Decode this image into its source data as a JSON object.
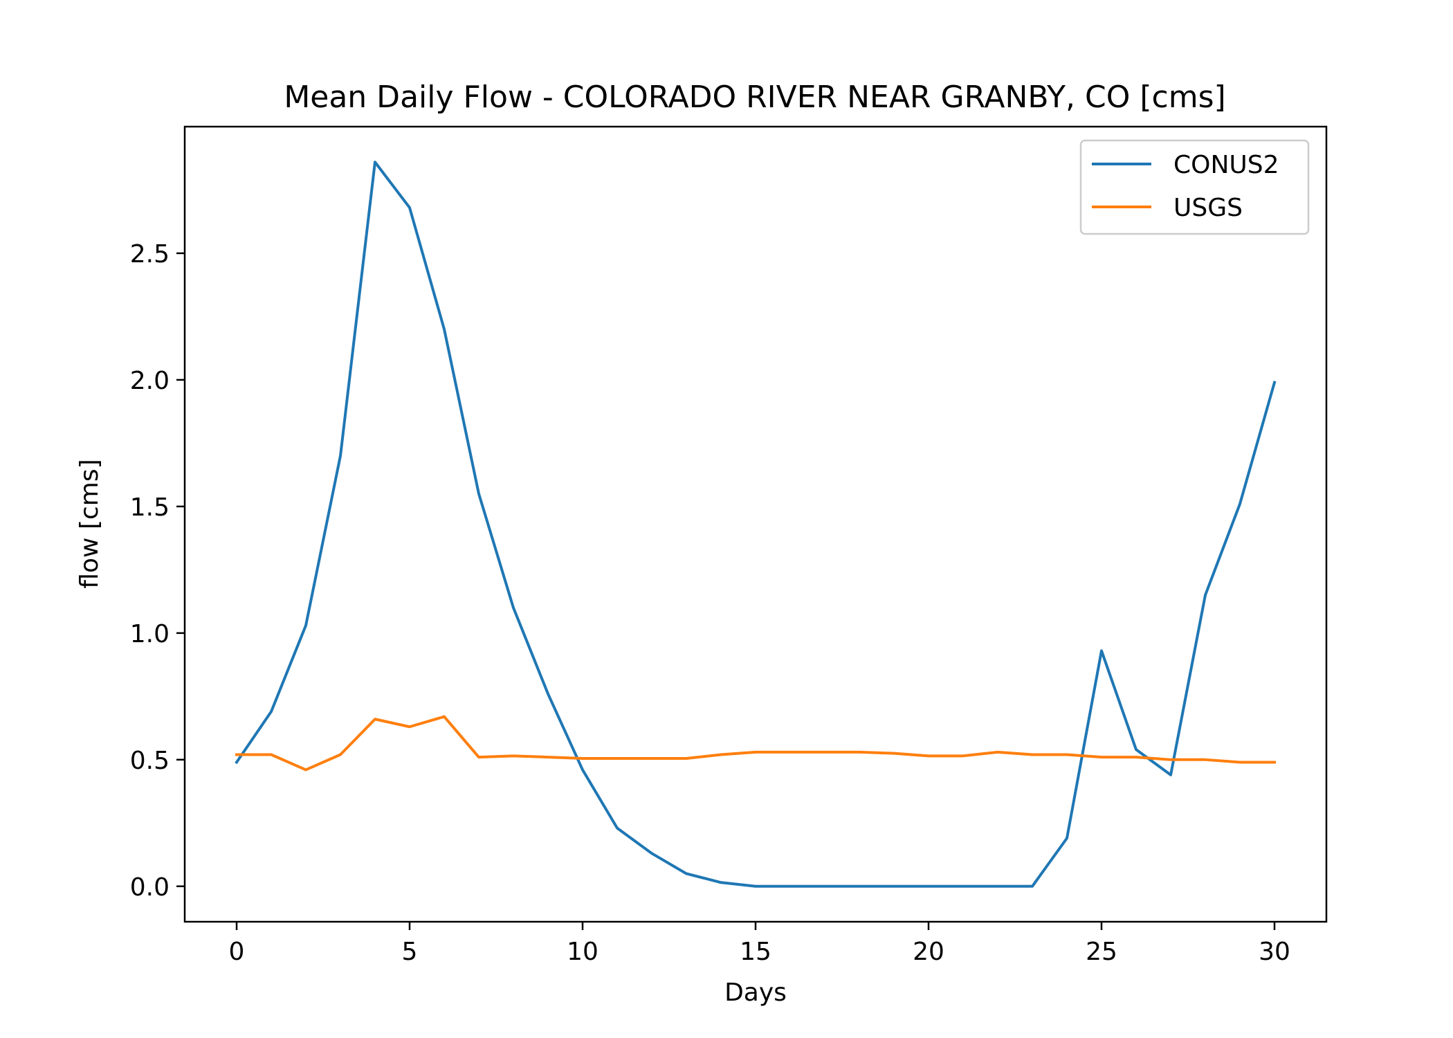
{
  "chart_data": {
    "type": "line",
    "title": "Mean Daily Flow - COLORADO RIVER NEAR GRANBY, CO [cms]",
    "xlabel": "Days",
    "ylabel": "flow [cms]",
    "xlim": [
      -1.5,
      31.5
    ],
    "ylim": [
      -0.14,
      3.0
    ],
    "x_ticks": [
      0,
      5,
      10,
      15,
      20,
      25,
      30
    ],
    "y_ticks": [
      0.0,
      0.5,
      1.0,
      1.5,
      2.0,
      2.5
    ],
    "x_tick_labels": [
      "0",
      "5",
      "10",
      "15",
      "20",
      "25",
      "30"
    ],
    "y_tick_labels": [
      "0.0",
      "0.5",
      "1.0",
      "1.5",
      "2.0",
      "2.5"
    ],
    "grid": false,
    "legend_position": "top-right",
    "x": [
      0,
      1,
      2,
      3,
      4,
      5,
      6,
      7,
      8,
      9,
      10,
      11,
      12,
      13,
      14,
      15,
      16,
      17,
      18,
      19,
      20,
      21,
      22,
      23,
      24,
      25,
      26,
      27,
      28,
      29,
      30
    ],
    "series": [
      {
        "name": "CONUS2",
        "color": "#1f77b4",
        "values": [
          0.49,
          0.69,
          1.03,
          1.7,
          2.86,
          2.68,
          2.2,
          1.55,
          1.1,
          0.76,
          0.46,
          0.23,
          0.13,
          0.05,
          0.015,
          0.0,
          0.0,
          0.0,
          0.0,
          0.0,
          0.0,
          0.0,
          0.0,
          0.0,
          0.19,
          0.93,
          0.54,
          0.44,
          1.15,
          1.51,
          1.99
        ]
      },
      {
        "name": "USGS",
        "color": "#ff7f0e",
        "values": [
          0.52,
          0.52,
          0.46,
          0.52,
          0.66,
          0.63,
          0.67,
          0.51,
          0.515,
          0.51,
          0.505,
          0.505,
          0.505,
          0.505,
          0.52,
          0.53,
          0.53,
          0.53,
          0.53,
          0.525,
          0.515,
          0.515,
          0.53,
          0.52,
          0.52,
          0.51,
          0.51,
          0.5,
          0.5,
          0.49,
          0.49
        ]
      }
    ]
  }
}
